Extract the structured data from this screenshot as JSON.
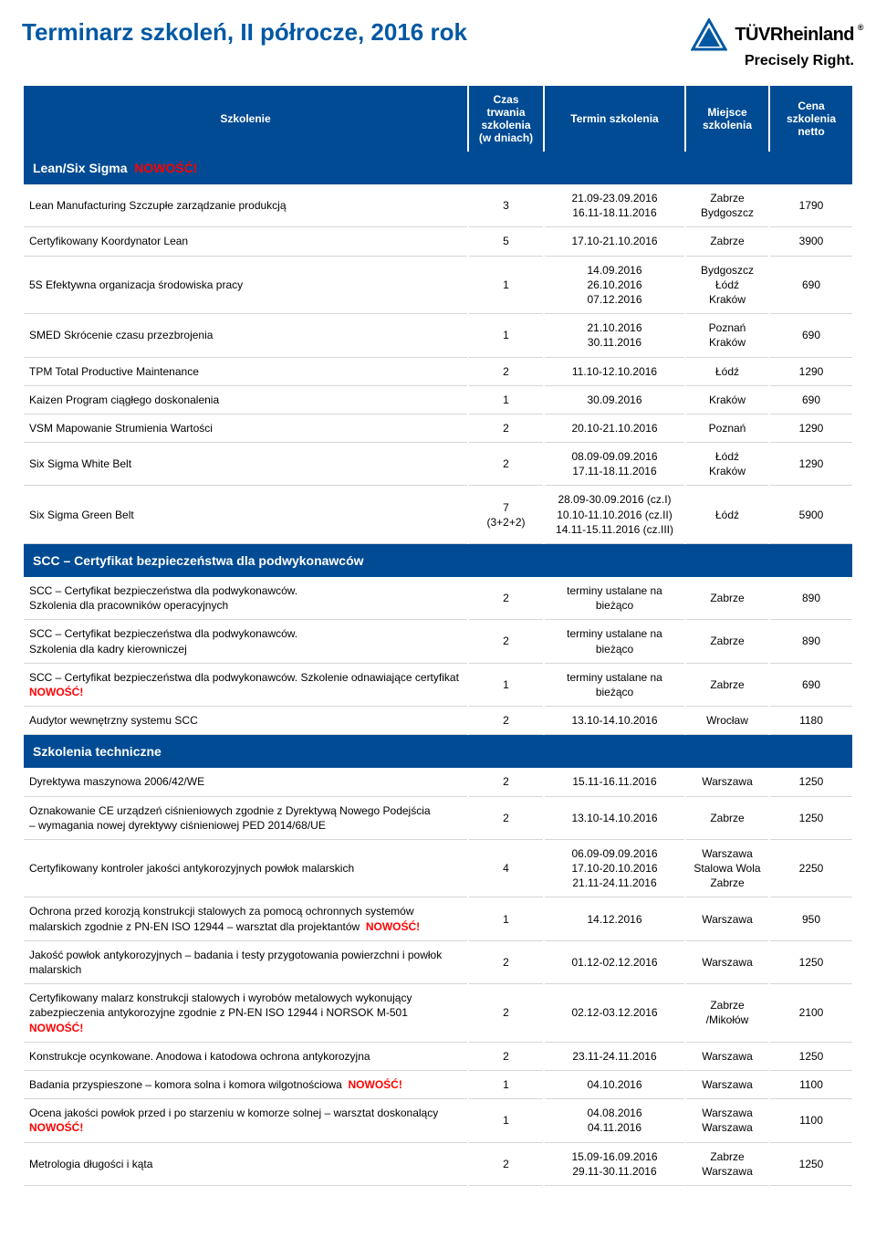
{
  "colors": {
    "brand_blue": "#004b93",
    "title_blue": "#0058a3",
    "red": "#ff0000",
    "border_gray": "#d6d6d6",
    "white": "#ffffff",
    "black": "#000000"
  },
  "header": {
    "title": "Terminarz szkoleń, II półrocze, 2016 rok",
    "logo_name": "TÜVRheinland",
    "logo_tagline": "Precisely Right.",
    "logo_reg": "®"
  },
  "columns": {
    "name": "Szkolenie",
    "duration": "Czas trwania szkolenia (w dniach)",
    "term": "Termin szkolenia",
    "location": "Miejsce szkolenia",
    "price": "Cena szkolenia netto"
  },
  "labels": {
    "nowosc": "NOWOŚĆ!"
  },
  "sections": [
    {
      "title": "Lean/Six Sigma",
      "nowosc": true,
      "rows": [
        {
          "name": "Lean Manufacturing Szczupłe zarządzanie produkcją",
          "duration": "3",
          "term": "21.09-23.09.2016\n16.11-18.11.2016",
          "location": "Zabrze\nBydgoszcz",
          "price": "1790"
        },
        {
          "name": "Certyfikowany Koordynator Lean",
          "duration": "5",
          "term": "17.10-21.10.2016",
          "location": "Zabrze",
          "price": "3900"
        },
        {
          "name": "5S Efektywna organizacja środowiska pracy",
          "duration": "1",
          "term": "14.09.2016\n26.10.2016\n07.12.2016",
          "location": "Bydgoszcz\nŁódź\nKraków",
          "price": "690"
        },
        {
          "name": "SMED Skrócenie czasu przezbrojenia",
          "duration": "1",
          "term": "21.10.2016\n30.11.2016",
          "location": "Poznań\nKraków",
          "price": "690"
        },
        {
          "name": "TPM Total Productive Maintenance",
          "duration": "2",
          "term": "11.10-12.10.2016",
          "location": "Łódź",
          "price": "1290"
        },
        {
          "name": "Kaizen Program ciągłego doskonalenia",
          "duration": "1",
          "term": "30.09.2016",
          "location": "Kraków",
          "price": "690"
        },
        {
          "name": "VSM Mapowanie Strumienia Wartości",
          "duration": "2",
          "term": "20.10-21.10.2016",
          "location": "Poznań",
          "price": "1290"
        },
        {
          "name": "Six Sigma White Belt",
          "duration": "2",
          "term": "08.09-09.09.2016\n17.11-18.11.2016",
          "location": "Łódź\nKraków",
          "price": "1290"
        },
        {
          "name": "Six Sigma Green Belt",
          "duration": "7\n(3+2+2)",
          "term": "28.09-30.09.2016 (cz.I)\n10.10-11.10.2016 (cz.II)\n14.11-15.11.2016 (cz.III)",
          "location": "Łódź",
          "price": "5900"
        }
      ]
    },
    {
      "title": "SCC – Certyfikat bezpieczeństwa dla podwykonawców",
      "nowosc": false,
      "rows": [
        {
          "name": "SCC – Certyfikat bezpieczeństwa dla podwykonawców.\nSzkolenia dla pracowników operacyjnych",
          "duration": "2",
          "term": "terminy ustalane na\nbieżąco",
          "location": "Zabrze",
          "price": "890"
        },
        {
          "name": "SCC – Certyfikat bezpieczeństwa dla podwykonawców.\nSzkolenia dla kadry kierowniczej",
          "duration": "2",
          "term": "terminy ustalane na\nbieżąco",
          "location": "Zabrze",
          "price": "890"
        },
        {
          "name": "SCC – Certyfikat bezpieczeństwa dla podwykonawców. Szkolenie odnawiające certyfikat",
          "nowosc": true,
          "duration": "1",
          "term": "terminy ustalane na\nbieżąco",
          "location": "Zabrze",
          "price": "690"
        },
        {
          "name": "Audytor wewnętrzny systemu SCC",
          "duration": "2",
          "term": "13.10-14.10.2016",
          "location": "Wrocław",
          "price": "1180"
        }
      ]
    },
    {
      "title": "Szkolenia techniczne",
      "nowosc": false,
      "rows": [
        {
          "name": "Dyrektywa maszynowa 2006/42/WE",
          "duration": "2",
          "term": "15.11-16.11.2016",
          "location": "Warszawa",
          "price": "1250"
        },
        {
          "name": "Oznakowanie CE urządzeń ciśnieniowych zgodnie z Dyrektywą Nowego Podejścia\n– wymagania nowej dyrektywy ciśnieniowej PED 2014/68/UE",
          "duration": "2",
          "term": "13.10-14.10.2016",
          "location": "Zabrze",
          "price": "1250"
        },
        {
          "name": "Certyfikowany kontroler jakości antykorozyjnych powłok malarskich",
          "duration": "4",
          "term": "06.09-09.09.2016\n17.10-20.10.2016\n21.11-24.11.2016",
          "location": "Warszawa\nStalowa Wola\nZabrze",
          "price": "2250"
        },
        {
          "name": "Ochrona przed korozją konstrukcji stalowych za pomocą ochronnych systemów malarskich zgodnie z PN-EN ISO 12944 – warsztat dla projektantów",
          "nowosc_inline": true,
          "duration": "1",
          "term": "14.12.2016",
          "location": "Warszawa",
          "price": "950"
        },
        {
          "name": "Jakość powłok antykorozyjnych – badania i testy przygotowania powierzchni i powłok malarskich",
          "duration": "2",
          "term": "01.12-02.12.2016",
          "location": "Warszawa",
          "price": "1250"
        },
        {
          "name": "Certyfikowany malarz konstrukcji stalowych i wyrobów metalowych wykonujący zabezpieczenia antykorozyjne zgodnie z PN-EN ISO 12944 i NORSOK M-501",
          "nowosc": true,
          "duration": "2",
          "term": "02.12-03.12.2016",
          "location": "Zabrze\n/Mikołów",
          "price": "2100"
        },
        {
          "name": "Konstrukcje ocynkowane. Anodowa i katodowa ochrona antykorozyjna",
          "duration": "2",
          "term": "23.11-24.11.2016",
          "location": "Warszawa",
          "price": "1250"
        },
        {
          "name": "Badania przyspieszone – komora solna i komora wilgotnościowa",
          "nowosc_inline": true,
          "duration": "1",
          "term": "04.10.2016",
          "location": "Warszawa",
          "price": "1100"
        },
        {
          "name": "Ocena jakości powłok przed i po starzeniu w komorze solnej – warsztat doskonalący",
          "nowosc": true,
          "duration": "1",
          "term": "04.08.2016\n04.11.2016",
          "location": "Warszawa\nWarszawa",
          "price": "1100"
        },
        {
          "name": "Metrologia długości i kąta",
          "duration": "2",
          "term": "15.09-16.09.2016\n29.11-30.11.2016",
          "location": "Zabrze\nWarszawa",
          "price": "1250"
        }
      ]
    }
  ]
}
